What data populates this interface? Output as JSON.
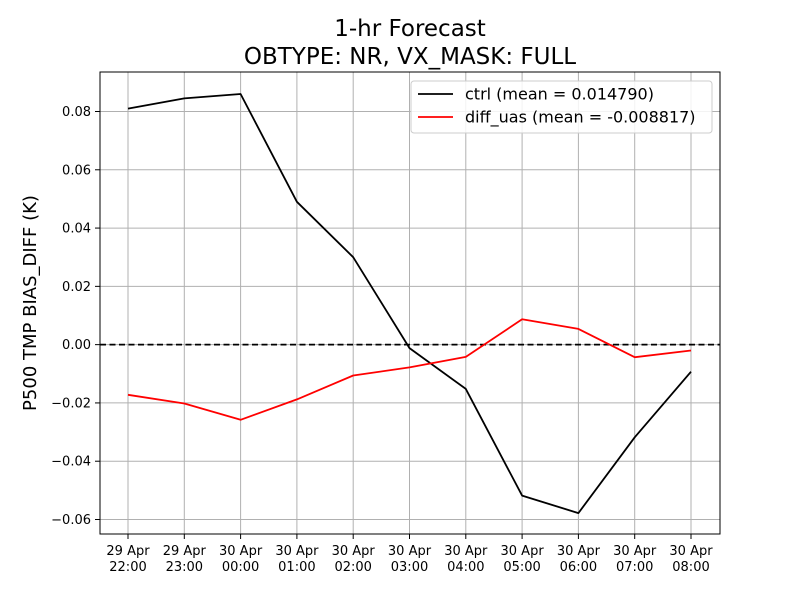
{
  "chart_data": {
    "type": "line",
    "title": "1-hr Forecast",
    "subtitle": "OBTYPE: NR,  VX_MASK: FULL",
    "xlabel": "",
    "ylabel": "P500 TMP BIAS_DIFF (K)",
    "x": [
      [
        "29 Apr",
        "22:00"
      ],
      [
        "29 Apr",
        "23:00"
      ],
      [
        "30 Apr",
        "00:00"
      ],
      [
        "30 Apr",
        "01:00"
      ],
      [
        "30 Apr",
        "02:00"
      ],
      [
        "30 Apr",
        "03:00"
      ],
      [
        "30 Apr",
        "04:00"
      ],
      [
        "30 Apr",
        "05:00"
      ],
      [
        "30 Apr",
        "06:00"
      ],
      [
        "30 Apr",
        "07:00"
      ],
      [
        "30 Apr",
        "08:00"
      ]
    ],
    "ylim": [
      -0.065,
      0.093
    ],
    "yticks": [
      "0.08",
      "0.06",
      "0.04",
      "0.02",
      "0.00",
      "−0.02",
      "−0.04",
      "−0.06"
    ],
    "ytick_values": [
      0.08,
      0.06,
      0.04,
      0.02,
      0.0,
      -0.02,
      -0.04,
      -0.06
    ],
    "grid": true,
    "legend_position": "top-right",
    "reference_line": {
      "y": 0.0,
      "style": "dashed",
      "color": "#000000"
    },
    "series": [
      {
        "name": "ctrl (mean = 0.014790)",
        "color": "#000000",
        "values": [
          0.081,
          0.0845,
          0.086,
          0.049,
          0.03,
          -0.0012,
          -0.0152,
          -0.0518,
          -0.0578,
          -0.0318,
          -0.0093
        ]
      },
      {
        "name": "diff_uas (mean = -0.008817)",
        "color": "#ff0000",
        "values": [
          -0.0172,
          -0.0202,
          -0.0258,
          -0.0188,
          -0.0106,
          -0.0078,
          -0.0042,
          0.0087,
          0.0054,
          -0.0043,
          -0.002
        ]
      }
    ]
  }
}
